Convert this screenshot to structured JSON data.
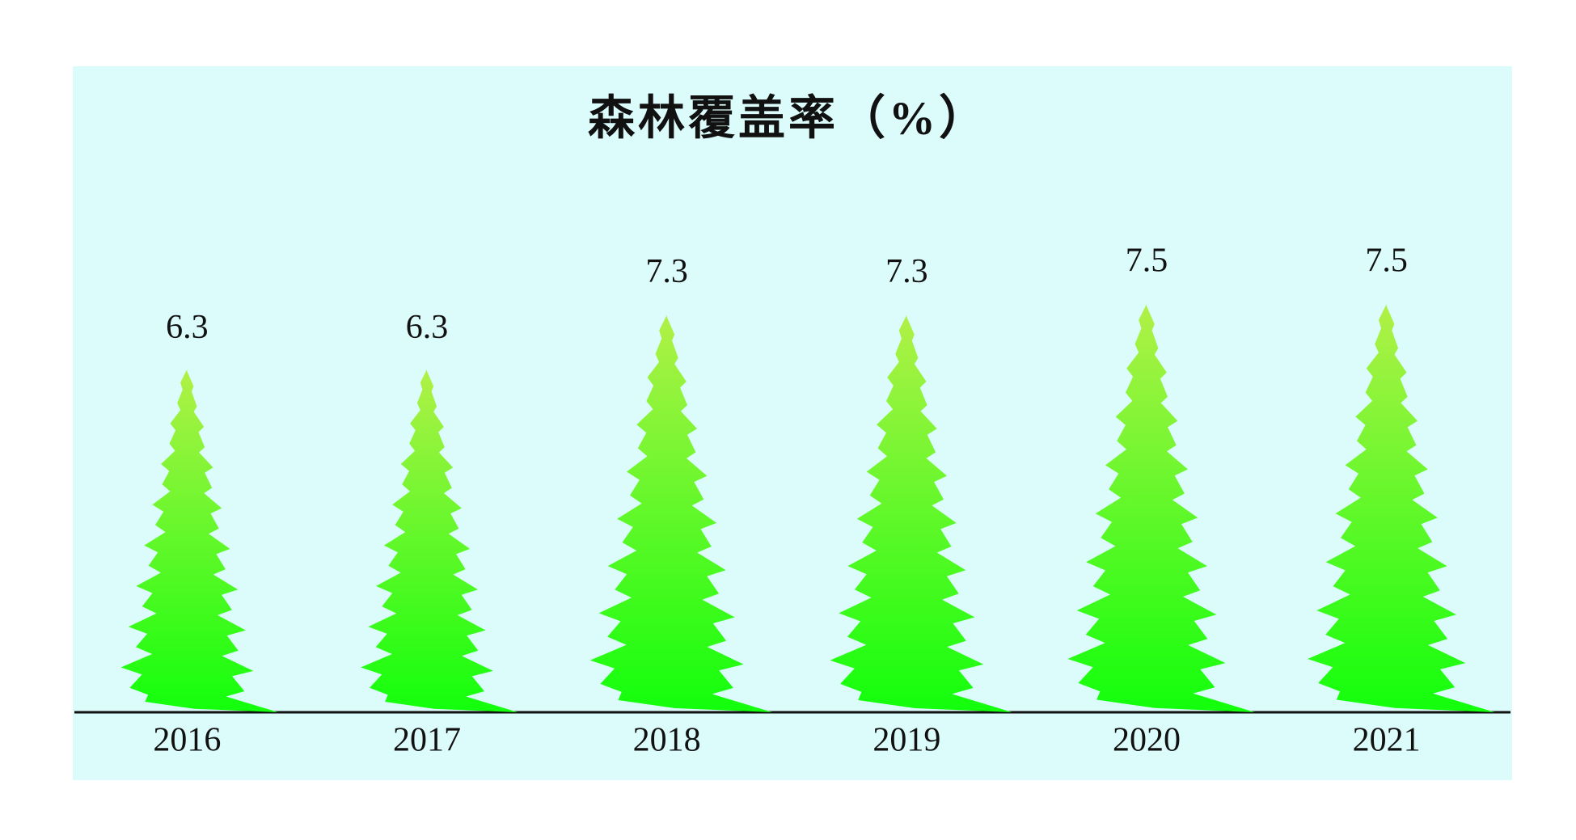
{
  "chart_data": {
    "type": "pictograph",
    "title": "森林覆盖率（%）",
    "categories": [
      "2016",
      "2017",
      "2018",
      "2019",
      "2020",
      "2021"
    ],
    "values": [
      6.3,
      6.3,
      7.3,
      7.3,
      7.5,
      7.5
    ],
    "color": "#22ff10"
  }
}
